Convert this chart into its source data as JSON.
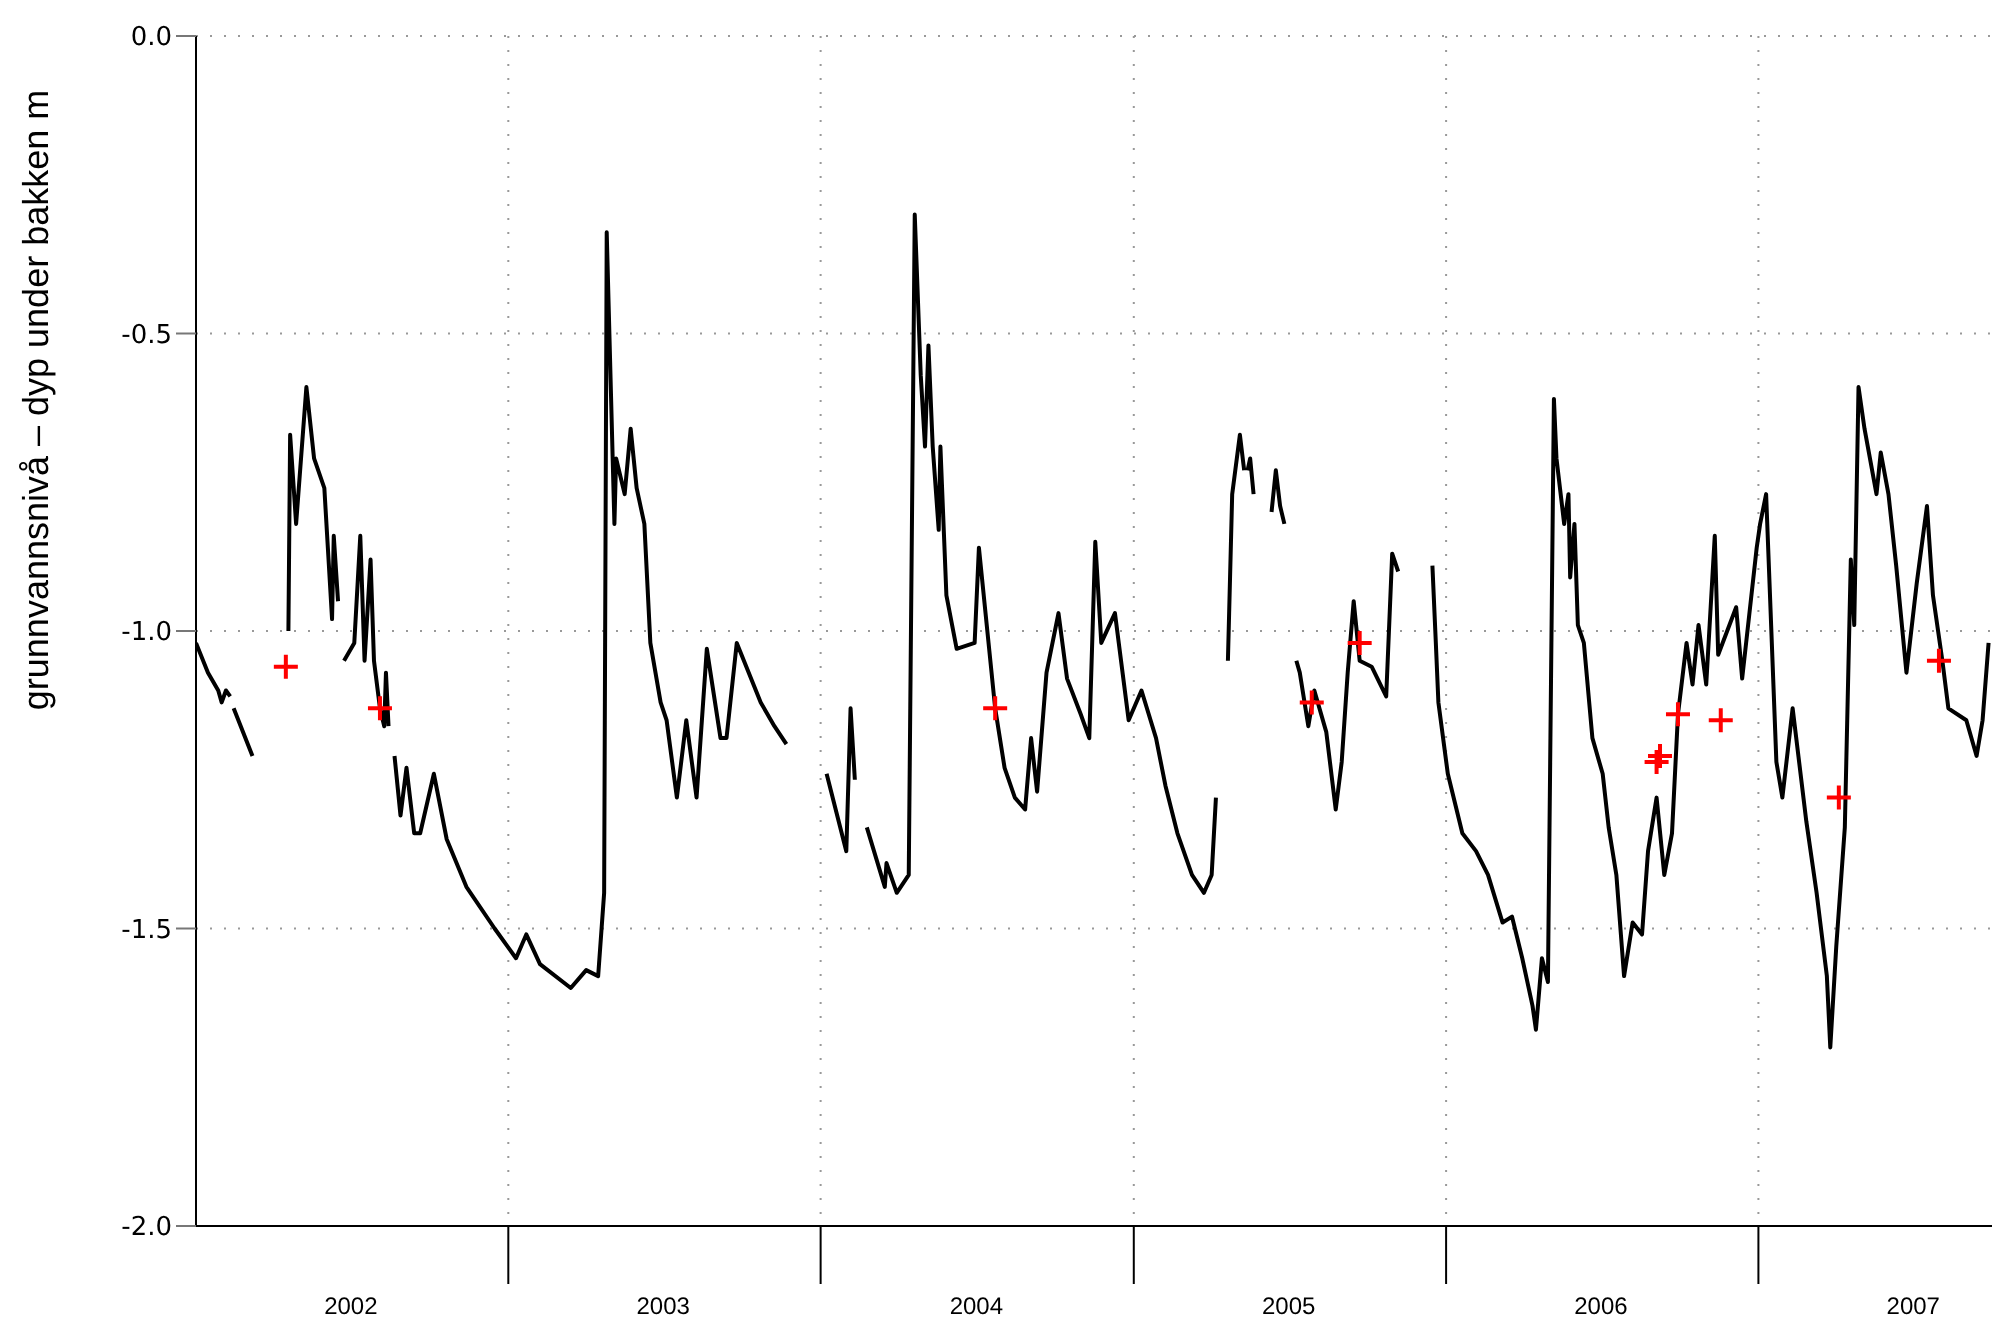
{
  "chart_data": {
    "type": "line",
    "ylabel": "grunnvannsnivå – dyp under bakken m",
    "xlim": [
      "2002-01-01",
      "2007-10-01"
    ],
    "xticks": [
      {
        "value": "2002-07-01",
        "label": "2002"
      },
      {
        "value": "2003-01-01",
        "label": null
      },
      {
        "value": "2003-07-01",
        "label": "2003"
      },
      {
        "value": "2004-01-01",
        "label": null
      },
      {
        "value": "2004-07-01",
        "label": "2004"
      },
      {
        "value": "2005-01-01",
        "label": null
      },
      {
        "value": "2005-07-01",
        "label": "2005"
      },
      {
        "value": "2006-01-01",
        "label": null
      },
      {
        "value": "2006-07-01",
        "label": "2006"
      },
      {
        "value": "2007-01-01",
        "label": null
      },
      {
        "value": "2007-07-01",
        "label": "2007"
      }
    ],
    "ylim": [
      -2,
      0
    ],
    "yticks": [
      {
        "value": -2,
        "label": "-2.0"
      },
      {
        "value": -1.5,
        "label": "-1.5"
      },
      {
        "value": -1,
        "label": "-1.0"
      },
      {
        "value": -0.5,
        "label": "-0.5"
      },
      {
        "value": 0,
        "label": "0.0"
      }
    ],
    "grid": true,
    "line_style": "solid",
    "series": [
      {
        "type": "line",
        "color": "#000000",
        "x": [
          "2002-01-01",
          "2002-01-15",
          "2002-01-27",
          "2002-01-31",
          "2002-02-05",
          "2002-02-10",
          "2002-02-12",
          "2002-02-14",
          "2002-03-08",
          "2002-04-01",
          "2002-04-19",
          "2002-04-21",
          "2002-04-28",
          "2002-05-10",
          "2002-05-19",
          "2002-05-31",
          "2002-06-09",
          "2002-06-11",
          "2002-06-16",
          "2002-06-20",
          "2002-06-23",
          "2002-07-05",
          "2002-07-12",
          "2002-07-17",
          "2002-07-24",
          "2002-07-28",
          "2002-08-04",
          "2002-08-09",
          "2002-08-11",
          "2002-08-14",
          "2002-08-18",
          "2002-08-21",
          "2002-08-28",
          "2002-09-04",
          "2002-09-13",
          "2002-09-20",
          "2002-10-06",
          "2002-10-21",
          "2002-11-13",
          "2002-12-16",
          "2003-01-10",
          "2003-01-22",
          "2003-02-07",
          "2003-03-15",
          "2003-04-02",
          "2003-04-16",
          "2003-04-23",
          "2003-04-26",
          "2003-05-05",
          "2003-05-07",
          "2003-05-17",
          "2003-05-24",
          "2003-05-31",
          "2003-06-09",
          "2003-06-16",
          "2003-06-28",
          "2003-07-05",
          "2003-07-17",
          "2003-07-28",
          "2003-08-09",
          "2003-08-21",
          "2003-09-06",
          "2003-09-13",
          "2003-09-25",
          "2003-10-23",
          "2003-11-08",
          "2003-11-22",
          "2003-12-15",
          "2004-01-08",
          "2004-01-31",
          "2004-02-05",
          "2004-02-10",
          "2004-02-17",
          "2004-02-24",
          "2004-03-16",
          "2004-03-18",
          "2004-03-30",
          "2004-04-13",
          "2004-04-20",
          "2004-04-27",
          "2004-05-02",
          "2004-05-06",
          "2004-05-11",
          "2004-05-18",
          "2004-05-20",
          "2004-05-27",
          "2004-06-08",
          "2004-06-29",
          "2004-07-04",
          "2004-07-23",
          "2004-08-03",
          "2004-08-15",
          "2004-08-27",
          "2004-09-03",
          "2004-09-10",
          "2004-09-21",
          "2004-10-05",
          "2004-10-15",
          "2004-10-31",
          "2004-11-10",
          "2004-11-17",
          "2004-11-24",
          "2004-12-10",
          "2004-12-26",
          "2005-01-10",
          "2005-01-27",
          "2005-02-07",
          "2005-02-21",
          "2005-03-10",
          "2005-03-24",
          "2005-04-02",
          "2005-04-07",
          "2005-04-14",
          "2005-04-21",
          "2005-04-26",
          "2005-05-05",
          "2005-05-10",
          "2005-05-12",
          "2005-05-14",
          "2005-05-17",
          "2005-05-21",
          "2005-06-01",
          "2005-06-11",
          "2005-06-16",
          "2005-06-21",
          "2005-06-26",
          "2005-07-03",
          "2005-07-10",
          "2005-07-14",
          "2005-07-24",
          "2005-07-31",
          "2005-08-14",
          "2005-08-25",
          "2005-09-01",
          "2005-09-08",
          "2005-09-15",
          "2005-09-22",
          "2005-10-06",
          "2005-10-23",
          "2005-10-30",
          "2005-11-06",
          "2005-11-30",
          "2005-12-16",
          "2005-12-20",
          "2005-12-23",
          "2006-01-03",
          "2006-01-20",
          "2006-02-05",
          "2006-02-19",
          "2006-03-08",
          "2006-03-19",
          "2006-03-31",
          "2006-04-12",
          "2006-04-16",
          "2006-04-23",
          "2006-04-30",
          "2006-05-07",
          "2006-05-10",
          "2006-05-19",
          "2006-05-24",
          "2006-05-26",
          "2006-05-31",
          "2006-06-04",
          "2006-06-11",
          "2006-06-21",
          "2006-07-03",
          "2006-07-10",
          "2006-07-19",
          "2006-07-28",
          "2006-08-07",
          "2006-08-18",
          "2006-08-25",
          "2006-09-04",
          "2006-09-13",
          "2006-09-22",
          "2006-09-29",
          "2006-10-09",
          "2006-10-16",
          "2006-10-23",
          "2006-11-01",
          "2006-11-11",
          "2006-11-15",
          "2006-12-06",
          "2006-12-13",
          "2006-12-30",
          "2007-01-03",
          "2007-01-10",
          "2007-01-22",
          "2007-01-29",
          "2007-02-10",
          "2007-02-26",
          "2007-03-10",
          "2007-03-22",
          "2007-03-26",
          "2007-04-02",
          "2007-04-12",
          "2007-04-19",
          "2007-04-23",
          "2007-04-28",
          "2007-05-05",
          "2007-05-19",
          "2007-05-24",
          "2007-06-02",
          "2007-06-11",
          "2007-06-23",
          "2007-07-05",
          "2007-07-17",
          "2007-07-24",
          "2007-08-04",
          "2007-08-11",
          "2007-09-01",
          "2007-09-13",
          "2007-09-20",
          "2007-09-27"
        ],
        "values": [
          -1.02,
          -1.07,
          -1.1,
          -1.12,
          -1.1,
          -1.11,
          null,
          -1.13,
          -1.21,
          null,
          -1.0,
          -0.67,
          -0.82,
          -0.59,
          -0.71,
          -0.76,
          -0.98,
          -0.84,
          -0.95,
          null,
          -1.05,
          -1.02,
          -0.84,
          -1.05,
          -0.88,
          -1.05,
          -1.13,
          -1.16,
          -1.07,
          -1.16,
          null,
          -1.21,
          -1.31,
          -1.23,
          -1.34,
          -1.34,
          -1.24,
          -1.35,
          -1.43,
          -1.5,
          -1.55,
          -1.51,
          -1.56,
          -1.6,
          -1.57,
          -1.58,
          -1.44,
          -0.33,
          -0.82,
          -0.71,
          -0.77,
          -0.66,
          -0.76,
          -0.82,
          -1.02,
          -1.12,
          -1.15,
          -1.28,
          -1.15,
          -1.28,
          -1.03,
          -1.18,
          -1.18,
          -1.02,
          -1.12,
          -1.16,
          -1.19,
          null,
          -1.24,
          -1.37,
          -1.13,
          -1.25,
          null,
          -1.33,
          -1.43,
          -1.39,
          -1.44,
          -1.41,
          -0.3,
          -0.57,
          -0.69,
          -0.52,
          -0.69,
          -0.83,
          -0.69,
          -0.94,
          -1.03,
          -1.02,
          -0.86,
          -1.13,
          -1.23,
          -1.28,
          -1.3,
          -1.18,
          -1.27,
          -1.07,
          -0.97,
          -1.08,
          -1.14,
          -1.18,
          -0.85,
          -1.02,
          -0.97,
          -1.15,
          -1.1,
          -1.18,
          -1.26,
          -1.34,
          -1.41,
          -1.44,
          -1.41,
          -1.28,
          null,
          -1.05,
          -0.77,
          -0.67,
          -0.73,
          null,
          -0.73,
          -0.71,
          -0.77,
          null,
          -0.8,
          -0.73,
          -0.79,
          -0.82,
          null,
          -1.05,
          -1.07,
          -1.16,
          -1.1,
          -1.17,
          -1.3,
          -1.22,
          -1.07,
          -0.95,
          -1.05,
          -1.06,
          -1.11,
          -0.87,
          -0.9,
          null,
          -0.89,
          -1.02,
          -1.12,
          -1.24,
          -1.34,
          -1.37,
          -1.41,
          -1.49,
          -1.48,
          -1.55,
          -1.63,
          -1.67,
          -1.55,
          -1.59,
          -0.61,
          -0.71,
          -0.82,
          -0.77,
          -0.91,
          -0.82,
          -0.99,
          -1.02,
          -1.18,
          -1.24,
          -1.33,
          -1.41,
          -1.58,
          -1.49,
          -1.51,
          -1.37,
          -1.28,
          -1.41,
          -1.34,
          -1.14,
          -1.02,
          -1.09,
          -0.99,
          -1.09,
          -0.84,
          -1.04,
          -0.96,
          -1.08,
          -0.86,
          -0.82,
          -0.77,
          -1.22,
          -1.28,
          -1.13,
          -1.32,
          -1.44,
          -1.58,
          -1.7,
          -1.53,
          -1.33,
          -0.88,
          -0.99,
          -0.59,
          -0.66,
          -0.77,
          -0.7,
          -0.77,
          -0.89,
          -1.07,
          -0.92,
          -0.79,
          -0.94,
          -1.05,
          -1.13,
          -1.15,
          -1.21,
          -1.15,
          -1.02
        ]
      },
      {
        "type": "scatter",
        "color": "#ff0000",
        "marker": "cross",
        "x": [
          "2002-04-16",
          "2002-08-04",
          "2004-07-23",
          "2005-07-28",
          "2005-09-22",
          "2006-09-04",
          "2006-09-08",
          "2006-09-29",
          "2006-11-18",
          "2007-04-05",
          "2007-07-31"
        ],
        "values": [
          -1.06,
          -1.13,
          -1.13,
          -1.12,
          -1.02,
          -1.22,
          -1.21,
          -1.14,
          -1.15,
          -1.28,
          -1.05
        ]
      }
    ]
  }
}
